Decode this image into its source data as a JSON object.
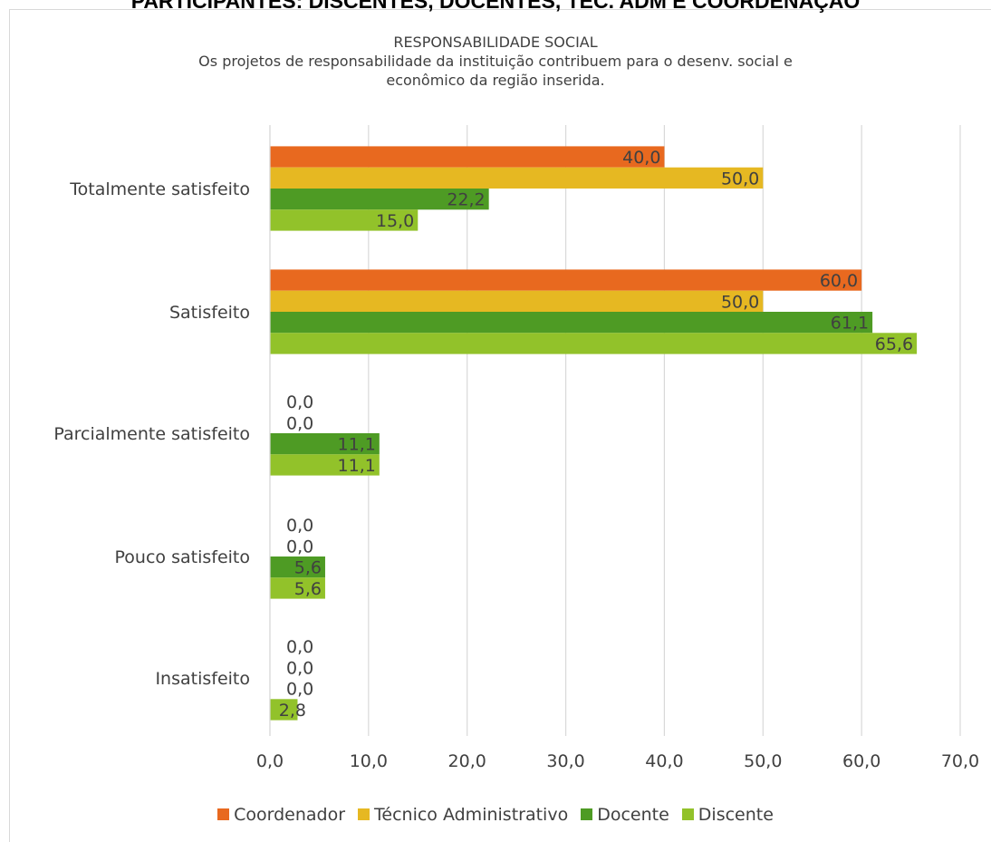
{
  "heading": "PARTICIPANTES: DISCENTES, DOCENTES, TÉC. ADM E COORDENAÇÃO",
  "chart_data": {
    "type": "bar",
    "orientation": "horizontal",
    "title": "RESPONSABILIDADE SOCIAL",
    "subtitle_lines": [
      "Os projetos de responsabilidade da instituição contribuem para o desenv. social e",
      "econômico da região inserida."
    ],
    "categories": [
      "Totalmente satisfeito",
      "Satisfeito",
      "Parcialmente satisfeito",
      "Pouco satisfeito",
      "Insatisfeito"
    ],
    "series": [
      {
        "name": "Coordenador",
        "color": "#e8691f",
        "values": [
          40.0,
          60.0,
          0.0,
          0.0,
          0.0
        ],
        "labels": [
          "40,0",
          "60,0",
          "0,0",
          "0,0",
          "0,0"
        ]
      },
      {
        "name": "Técnico Administrativo",
        "color": "#e6b822",
        "values": [
          50.0,
          50.0,
          0.0,
          0.0,
          0.0
        ],
        "labels": [
          "50,0",
          "50,0",
          "0,0",
          "0,0",
          "0,0"
        ]
      },
      {
        "name": "Docente",
        "color": "#4e9b24",
        "values": [
          22.2,
          61.1,
          11.1,
          5.6,
          0.0
        ],
        "labels": [
          "22,2",
          "61,1",
          "11,1",
          "5,6",
          "0,0"
        ]
      },
      {
        "name": "Discente",
        "color": "#92c22a",
        "values": [
          15.0,
          65.6,
          11.1,
          5.6,
          2.8
        ],
        "labels": [
          "15,0",
          "65,6",
          "11,1",
          "5,6",
          "2,8"
        ]
      }
    ],
    "xlim": [
      0,
      70
    ],
    "xticks": [
      0,
      10,
      20,
      30,
      40,
      50,
      60,
      70
    ],
    "xtick_labels": [
      "0,0",
      "10,0",
      "20,0",
      "30,0",
      "40,0",
      "50,0",
      "60,0",
      "70,0"
    ],
    "grid": true,
    "legend_position": "bottom"
  }
}
